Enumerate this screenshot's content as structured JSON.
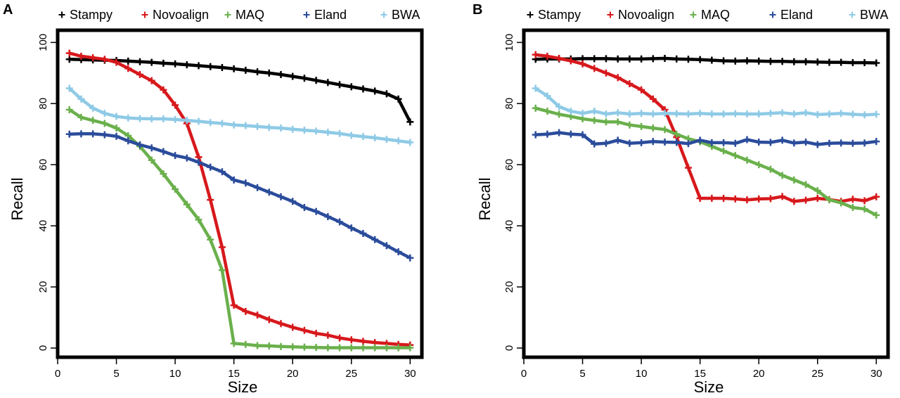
{
  "chart_data": [
    {
      "type": "line",
      "panel_label": "A",
      "xlabel": "Size",
      "ylabel": "Recall",
      "xlim": [
        0,
        31
      ],
      "ylim": [
        -3,
        104
      ],
      "x_ticks": [
        0,
        5,
        10,
        15,
        20,
        25,
        30
      ],
      "y_ticks": [
        0,
        20,
        40,
        60,
        80,
        100
      ],
      "grid": false,
      "legend_position": "top",
      "x": [
        1,
        2,
        3,
        4,
        5,
        6,
        7,
        8,
        9,
        10,
        11,
        12,
        13,
        14,
        15,
        16,
        17,
        18,
        19,
        20,
        21,
        22,
        23,
        24,
        25,
        26,
        27,
        28,
        29,
        30
      ],
      "series": [
        {
          "name": "Stampy",
          "color": "#000000",
          "values": [
            94.5,
            94.4,
            94.3,
            94.2,
            94.1,
            93.9,
            93.7,
            93.5,
            93.2,
            93.0,
            92.7,
            92.4,
            92.1,
            91.8,
            91.4,
            90.9,
            90.4,
            90.0,
            89.5,
            88.9,
            88.3,
            87.6,
            86.9,
            86.2,
            85.5,
            84.8,
            84.1,
            83.2,
            81.5,
            74.0
          ]
        },
        {
          "name": "Novoalign",
          "color": "#d7191c",
          "values": [
            96.5,
            95.5,
            95.0,
            94.5,
            93.5,
            91.5,
            89.5,
            87.5,
            84.5,
            79.5,
            73.5,
            62.5,
            48.5,
            33.0,
            14.0,
            12.0,
            10.8,
            9.3,
            8.0,
            6.8,
            5.8,
            4.8,
            4.2,
            3.3,
            2.7,
            2.2,
            1.8,
            1.5,
            1.2,
            1.0
          ]
        },
        {
          "name": "MAQ",
          "color": "#6ab04c",
          "values": [
            78.0,
            75.5,
            74.5,
            73.5,
            72.0,
            69.5,
            66.0,
            61.5,
            57.0,
            52.0,
            47.0,
            42.0,
            35.5,
            25.5,
            1.5,
            1.2,
            0.8,
            0.7,
            0.5,
            0.4,
            0.3,
            0.2,
            0.1,
            0.1,
            0.1,
            0.1,
            0.1,
            0.1,
            0.1,
            0.1
          ]
        },
        {
          "name": "Eland",
          "color": "#2b4c9b",
          "values": [
            70.0,
            70.1,
            70.1,
            69.8,
            69.3,
            67.8,
            66.5,
            65.5,
            64.3,
            63.0,
            62.2,
            60.8,
            59.2,
            57.7,
            55.0,
            54.0,
            52.5,
            51.0,
            49.5,
            48.0,
            46.0,
            44.7,
            43.0,
            41.3,
            39.3,
            37.5,
            35.5,
            33.5,
            31.5,
            29.5
          ]
        },
        {
          "name": "BWA",
          "color": "#8ecae6",
          "values": [
            85.0,
            81.5,
            78.5,
            76.8,
            75.8,
            75.3,
            75.1,
            75.0,
            75.0,
            74.8,
            74.5,
            74.2,
            73.8,
            73.5,
            73.0,
            72.8,
            72.5,
            72.2,
            72.0,
            71.6,
            71.3,
            71.0,
            70.6,
            70.2,
            69.6,
            69.2,
            68.8,
            68.3,
            67.8,
            67.3
          ]
        }
      ]
    },
    {
      "type": "line",
      "panel_label": "B",
      "xlabel": "Size",
      "ylabel": "Recall",
      "xlim": [
        0,
        31
      ],
      "ylim": [
        -3,
        104
      ],
      "x_ticks": [
        0,
        5,
        10,
        15,
        20,
        25,
        30
      ],
      "y_ticks": [
        0,
        20,
        40,
        60,
        80,
        100
      ],
      "grid": false,
      "legend_position": "top",
      "x": [
        1,
        2,
        3,
        4,
        5,
        6,
        7,
        8,
        9,
        10,
        11,
        12,
        13,
        14,
        15,
        16,
        17,
        18,
        19,
        20,
        21,
        22,
        23,
        24,
        25,
        26,
        27,
        28,
        29,
        30
      ],
      "series": [
        {
          "name": "Stampy",
          "color": "#000000",
          "values": [
            94.5,
            94.6,
            94.6,
            94.6,
            94.7,
            94.7,
            94.7,
            94.6,
            94.6,
            94.6,
            94.7,
            94.8,
            94.6,
            94.5,
            94.4,
            94.2,
            94.0,
            93.9,
            94.0,
            93.9,
            93.8,
            93.8,
            93.7,
            93.7,
            93.6,
            93.5,
            93.5,
            93.4,
            93.4,
            93.3
          ]
        },
        {
          "name": "Novoalign",
          "color": "#d7191c",
          "values": [
            96.0,
            95.5,
            94.8,
            94.0,
            93.0,
            91.5,
            90.0,
            88.5,
            86.5,
            84.5,
            81.5,
            78.0,
            69.0,
            59.0,
            49.0,
            49.0,
            49.0,
            48.8,
            48.5,
            48.8,
            48.9,
            49.6,
            48.0,
            48.4,
            49.0,
            48.6,
            48.0,
            48.7,
            48.2,
            49.5
          ]
        },
        {
          "name": "MAQ",
          "color": "#6ab04c",
          "values": [
            78.5,
            77.5,
            76.5,
            75.8,
            75.0,
            74.5,
            74.0,
            74.0,
            73.0,
            72.5,
            72.0,
            71.5,
            70.0,
            68.5,
            67.5,
            66.0,
            64.5,
            63.0,
            61.5,
            60.0,
            58.5,
            56.5,
            55.0,
            53.5,
            51.5,
            48.5,
            47.5,
            46.0,
            45.5,
            43.5
          ]
        },
        {
          "name": "Eland",
          "color": "#2b4c9b",
          "values": [
            69.8,
            70.0,
            70.5,
            70.0,
            69.8,
            66.8,
            67.0,
            68.0,
            67.0,
            67.2,
            67.6,
            67.4,
            67.3,
            66.9,
            68.0,
            67.2,
            67.2,
            67.0,
            68.2,
            67.4,
            67.3,
            68.0,
            67.1,
            67.4,
            66.6,
            67.0,
            67.1,
            67.0,
            67.1,
            67.6
          ]
        },
        {
          "name": "BWA",
          "color": "#8ecae6",
          "values": [
            85.0,
            82.5,
            79.0,
            77.5,
            76.8,
            77.5,
            76.6,
            77.0,
            76.6,
            76.8,
            76.6,
            76.8,
            76.7,
            76.6,
            76.8,
            76.6,
            76.6,
            76.7,
            76.6,
            76.6,
            76.8,
            77.0,
            76.6,
            77.0,
            76.4,
            76.6,
            76.8,
            76.5,
            76.3,
            76.5
          ]
        }
      ]
    }
  ]
}
